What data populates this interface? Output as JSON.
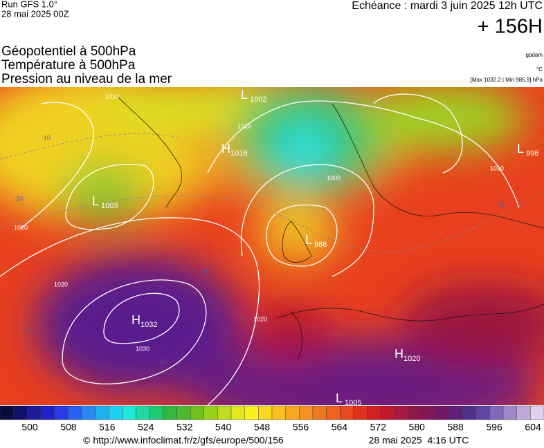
{
  "header": {
    "run": "Run GFS 1.0°",
    "run_date": "28 mai 2025 00Z",
    "echeance": "Echéance : mardi 3 juin 2025 12h UTC",
    "lead": "+ 156H",
    "layers": [
      "Géopotentiel à 500hPa",
      "Température à 500hPa",
      "Pression au niveau de la mer"
    ],
    "units": [
      "gpdam",
      "°C",
      "[Max 1032.2 | Min 985.9] hPa"
    ]
  },
  "map": {
    "centers": [
      {
        "letter": "H",
        "value": "1032"
      },
      {
        "letter": "L",
        "value": "1003"
      },
      {
        "letter": "L",
        "value": "986"
      },
      {
        "letter": "H",
        "value": "1018"
      },
      {
        "letter": "L",
        "value": "1002"
      },
      {
        "letter": "H",
        "value": "1020"
      },
      {
        "letter": "L",
        "value": "1005"
      },
      {
        "letter": "L",
        "value": "996"
      }
    ],
    "contour_labels": [
      "1020",
      "1030",
      "1020",
      "1010",
      "1010",
      "1000",
      "1010",
      "1020",
      "-10",
      "-10",
      "-10",
      "-20",
      "-10",
      "-10"
    ]
  },
  "colorbar": {
    "colors": [
      "#0a0a3c",
      "#10106a",
      "#1a1a9a",
      "#2020c8",
      "#2a3ae8",
      "#2a60f0",
      "#2a88f0",
      "#20b0f0",
      "#20d0f0",
      "#20e8d8",
      "#20d8a0",
      "#20c870",
      "#30b840",
      "#50b830",
      "#70c020",
      "#98d020",
      "#c0dc20",
      "#e0e820",
      "#f8f020",
      "#f8d820",
      "#f8c020",
      "#f8a820",
      "#f89020",
      "#f07820",
      "#f06020",
      "#e84820",
      "#e03020",
      "#d02020",
      "#c01830",
      "#a81840",
      "#901848",
      "#801858",
      "#701868",
      "#602078",
      "#503088",
      "#6048a0",
      "#8068b8",
      "#a088c8",
      "#c0a8d8",
      "#e0d0ec"
    ],
    "labels": [
      "500",
      "508",
      "516",
      "524",
      "532",
      "540",
      "548",
      "556",
      "564",
      "572",
      "580",
      "588",
      "596",
      "604"
    ]
  },
  "footer": {
    "url": "© http://www.infoclimat.fr/z/gfs/europe/500/156",
    "date": "28 mai 2025  4:16 UTC"
  }
}
